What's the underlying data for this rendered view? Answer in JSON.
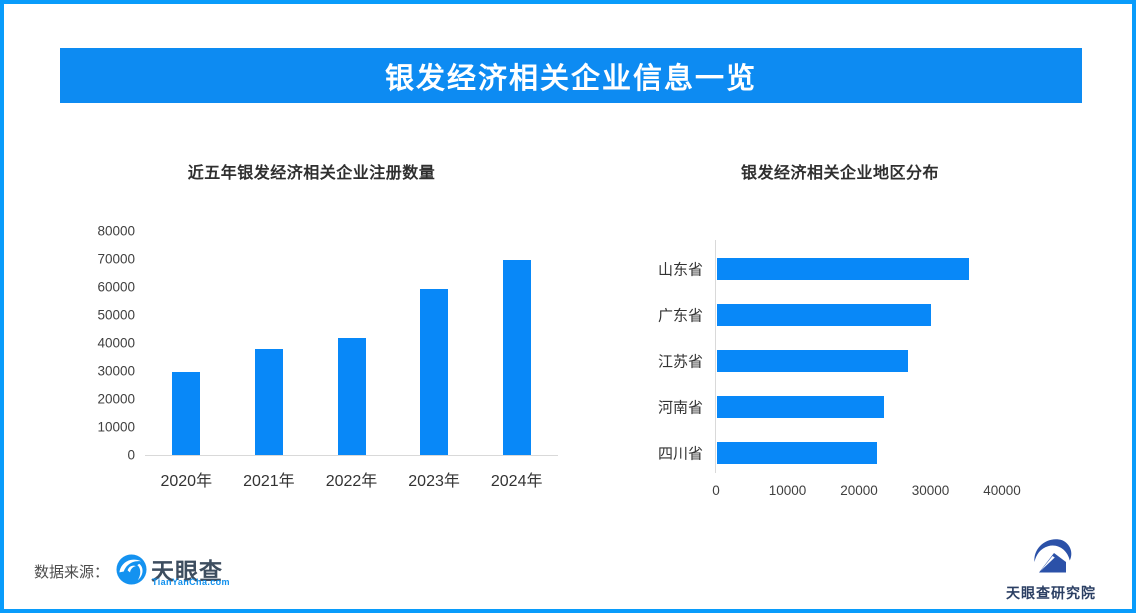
{
  "frame": {
    "border_color": "#099cfb",
    "background": "#ffffff"
  },
  "header": {
    "title": "银发经济相关企业信息一览",
    "bg_color": "#0d8bf2",
    "text_color": "#ffffff"
  },
  "chart_data": [
    {
      "type": "bar",
      "orientation": "vertical",
      "title": "近五年银发经济相关企业注册数量",
      "categories": [
        "2020年",
        "2021年",
        "2022年",
        "2023年",
        "2024年"
      ],
      "values": [
        29800,
        37900,
        41700,
        59400,
        69600
      ],
      "ylabel": "",
      "xlabel": "",
      "ylim": [
        0,
        80000
      ],
      "ytick_step": 10000,
      "grid": false,
      "bar_color": "#0888f8"
    },
    {
      "type": "bar",
      "orientation": "horizontal",
      "title": "银发经济相关企业地区分布",
      "categories": [
        "山东省",
        "广东省",
        "江苏省",
        "河南省",
        "四川省"
      ],
      "values": [
        35200,
        29900,
        26700,
        23300,
        22400
      ],
      "xlabel": "",
      "ylabel": "",
      "xlim": [
        0,
        44000
      ],
      "xticks": [
        0,
        10000,
        20000,
        30000,
        40000
      ],
      "grid": false,
      "bar_color": "#0888f8"
    }
  ],
  "footer": {
    "source_label": "数据来源：",
    "source_logo": {
      "name": "天眼查",
      "subtext": "TianYanCha.com",
      "icon_color": "#1492f0"
    },
    "right_logo": {
      "name": "天眼查研究院",
      "icon_color": "#2b51a8"
    }
  }
}
